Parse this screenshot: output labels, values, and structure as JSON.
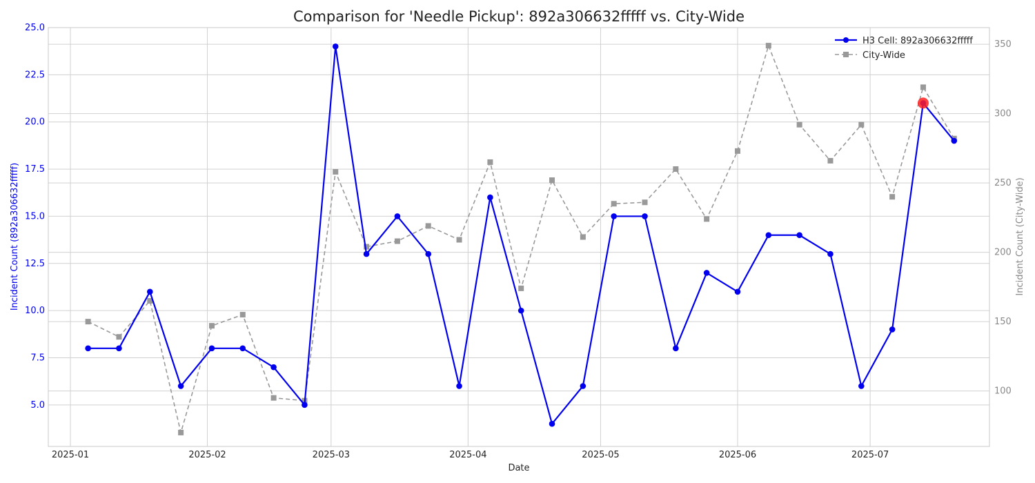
{
  "chart_data": {
    "type": "line",
    "title": "Comparison for 'Needle Pickup': 892a306632fffff vs. City-Wide",
    "xlabel": "Date",
    "ylabel_left": "Incident Count (892a306632fffff)",
    "ylabel_right": "Incident Count (City-Wide)",
    "xlim": [
      "2024-12-27",
      "2025-07-28"
    ],
    "ylim_left": [
      2.8,
      25.0
    ],
    "ylim_right": [
      60,
      362
    ],
    "yticks_left": [
      "5.0",
      "7.5",
      "10.0",
      "12.5",
      "15.0",
      "17.5",
      "20.0",
      "22.5",
      "25.0"
    ],
    "yticks_right": [
      "100",
      "150",
      "200",
      "250",
      "300",
      "350"
    ],
    "xticks": [
      "2025-01",
      "2025-02",
      "2025-03",
      "2025-04",
      "2025-05",
      "2025-06",
      "2025-07"
    ],
    "grid": true,
    "legend_position": "top-right",
    "x": [
      "2025-01-05",
      "2025-01-12",
      "2025-01-19",
      "2025-01-26",
      "2025-02-02",
      "2025-02-09",
      "2025-02-16",
      "2025-02-23",
      "2025-03-02",
      "2025-03-09",
      "2025-03-16",
      "2025-03-23",
      "2025-03-30",
      "2025-04-06",
      "2025-04-13",
      "2025-04-20",
      "2025-04-27",
      "2025-05-04",
      "2025-05-11",
      "2025-05-18",
      "2025-05-25",
      "2025-06-01",
      "2025-06-08",
      "2025-06-15",
      "2025-06-22",
      "2025-06-29",
      "2025-07-06",
      "2025-07-13",
      "2025-07-20"
    ],
    "series": [
      {
        "name": "H3 Cell: 892a306632fffff",
        "axis": "left",
        "color": "#0000ee",
        "marker": "circle",
        "values": [
          8,
          8,
          11,
          6,
          8,
          8,
          7,
          5,
          24,
          13,
          15,
          13,
          6,
          16,
          10,
          4,
          6,
          15,
          15,
          8,
          12,
          11,
          14,
          14,
          13,
          6,
          9,
          21,
          19
        ]
      },
      {
        "name": "City-Wide",
        "axis": "right",
        "color": "#999999",
        "marker": "square",
        "dashed": true,
        "values": [
          150,
          139,
          165,
          70,
          147,
          155,
          95,
          93,
          258,
          204,
          208,
          219,
          209,
          265,
          174,
          252,
          211,
          235,
          236,
          260,
          224,
          273,
          349,
          292,
          266,
          292,
          240,
          319,
          282
        ]
      }
    ],
    "highlight": {
      "series": 0,
      "index": 27,
      "color": "#ff2020"
    }
  }
}
